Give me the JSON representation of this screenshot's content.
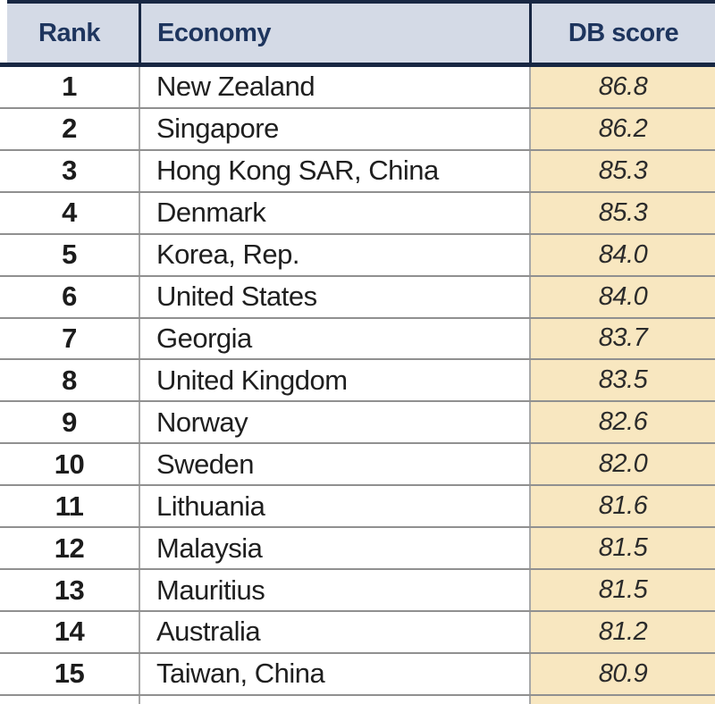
{
  "table": {
    "columns": [
      {
        "key": "rank",
        "label": "Rank"
      },
      {
        "key": "economy",
        "label": "Economy"
      },
      {
        "key": "score",
        "label": "DB score"
      }
    ],
    "rows": [
      {
        "rank": "1",
        "economy": "New Zealand",
        "score": "86.8"
      },
      {
        "rank": "2",
        "economy": "Singapore",
        "score": "86.2"
      },
      {
        "rank": "3",
        "economy": "Hong Kong SAR, China",
        "score": "85.3"
      },
      {
        "rank": "4",
        "economy": "Denmark",
        "score": "85.3"
      },
      {
        "rank": "5",
        "economy": "Korea, Rep.",
        "score": "84.0"
      },
      {
        "rank": "6",
        "economy": "United States",
        "score": "84.0"
      },
      {
        "rank": "7",
        "economy": "Georgia",
        "score": "83.7"
      },
      {
        "rank": "8",
        "economy": "United Kingdom",
        "score": "83.5"
      },
      {
        "rank": "9",
        "economy": "Norway",
        "score": "82.6"
      },
      {
        "rank": "10",
        "economy": "Sweden",
        "score": "82.0"
      },
      {
        "rank": "11",
        "economy": "Lithuania",
        "score": "81.6"
      },
      {
        "rank": "12",
        "economy": "Malaysia",
        "score": "81.5"
      },
      {
        "rank": "13",
        "economy": "Mauritius",
        "score": "81.5"
      },
      {
        "rank": "14",
        "economy": "Australia",
        "score": "81.2"
      },
      {
        "rank": "15",
        "economy": "Taiwan, China",
        "score": "80.9"
      }
    ]
  },
  "colors": {
    "rule": "#182743",
    "header_bg": "#d4dae6",
    "header_text": "#1e355e",
    "separator": "#909090",
    "body_divider": "#a8a8a8",
    "score_bg": "#f8e7c0",
    "rank_text": "#1c1c1c",
    "economy_text": "#1f1f1f",
    "score_text": "#2b2b2b"
  }
}
